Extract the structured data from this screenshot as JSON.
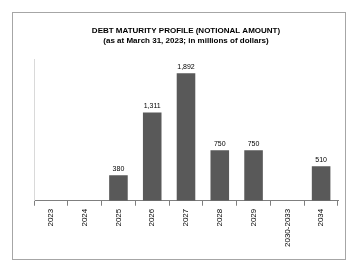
{
  "chart_data": {
    "type": "bar",
    "title": [
      "DEBT MATURITY PROFILE (NOTIONAL AMOUNT)",
      "(as at March 31, 2023; in millions of dollars)"
    ],
    "categories": [
      "2023",
      "2024",
      "2025",
      "2026",
      "2027",
      "2028",
      "2029",
      "2030-2033",
      "2034"
    ],
    "values": [
      null,
      null,
      380,
      1311,
      1892,
      750,
      750,
      null,
      510
    ],
    "value_labels": [
      null,
      null,
      "380",
      "1,311",
      "1,892",
      "750",
      "750",
      null,
      "510"
    ],
    "color": "#595959",
    "ylim": [
      0,
      2100
    ],
    "grid": false,
    "data_labels": true,
    "tick_labels": "x"
  }
}
